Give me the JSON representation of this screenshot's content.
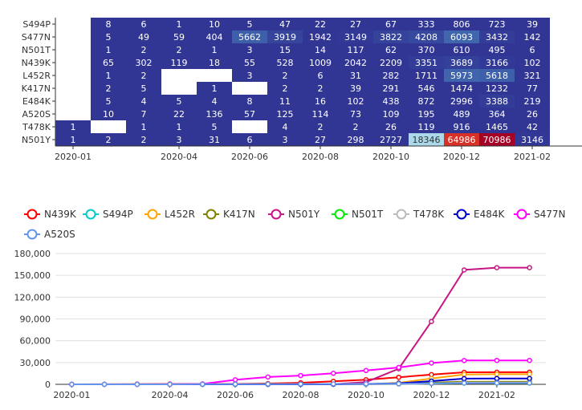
{
  "chart_data": [
    {
      "type": "heatmap",
      "title": "",
      "x_ticks": [
        "2020-01",
        "2020-04",
        "2020-06",
        "2020-08",
        "2020-10",
        "2020-12",
        "2021-02"
      ],
      "months": [
        "2020-01",
        "2020-02",
        "2020-03",
        "2020-04",
        "2020-05",
        "2020-06",
        "2020-07",
        "2020-08",
        "2020-09",
        "2020-10",
        "2020-11",
        "2020-12",
        "2021-01",
        "2021-02",
        "2021-03"
      ],
      "rows": [
        "S494P",
        "S477N",
        "N501T",
        "N439K",
        "L452R",
        "K417N",
        "E484K",
        "A520S",
        "T478K",
        "N501Y"
      ],
      "values": [
        [
          null,
          8,
          6,
          1,
          10,
          5,
          47,
          22,
          27,
          67,
          333,
          806,
          723,
          39,
          null
        ],
        [
          null,
          5,
          49,
          59,
          404,
          5662,
          3919,
          1942,
          3149,
          3822,
          4208,
          6093,
          3432,
          142,
          null
        ],
        [
          null,
          1,
          2,
          2,
          1,
          3,
          15,
          14,
          117,
          62,
          370,
          610,
          495,
          6,
          null
        ],
        [
          null,
          65,
          302,
          119,
          18,
          55,
          528,
          1009,
          2042,
          2209,
          3351,
          3689,
          3166,
          102,
          null
        ],
        [
          null,
          1,
          2,
          null,
          null,
          3,
          2,
          6,
          31,
          282,
          1711,
          5973,
          5618,
          321,
          null
        ],
        [
          null,
          2,
          5,
          null,
          1,
          null,
          2,
          2,
          39,
          291,
          546,
          1474,
          1232,
          77,
          null
        ],
        [
          null,
          5,
          4,
          5,
          4,
          8,
          11,
          16,
          102,
          438,
          872,
          2996,
          3388,
          219,
          null
        ],
        [
          null,
          10,
          7,
          22,
          136,
          57,
          125,
          114,
          73,
          109,
          195,
          489,
          364,
          26,
          null
        ],
        [
          1,
          null,
          1,
          1,
          5,
          null,
          4,
          2,
          2,
          26,
          119,
          916,
          1465,
          42,
          null
        ],
        [
          1,
          2,
          2,
          3,
          31,
          6,
          3,
          27,
          298,
          2727,
          18346,
          64986,
          70986,
          3146,
          null
        ]
      ],
      "colors": {
        "low": "#313695",
        "mid": "#4575b4",
        "light": "#abd9e9",
        "high": "#d73027",
        "peak": "#a50026"
      }
    },
    {
      "type": "line",
      "title": "",
      "x": [
        "2020-01",
        "2020-02",
        "2020-03",
        "2020-04",
        "2020-05",
        "2020-06",
        "2020-07",
        "2020-08",
        "2020-09",
        "2020-10",
        "2020-11",
        "2020-12",
        "2021-01",
        "2021-02",
        "2021-03"
      ],
      "x_ticks": [
        "2020-01",
        "2020-04",
        "2020-06",
        "2020-08",
        "2020-10",
        "2020-12",
        "2021-02"
      ],
      "y_ticks": [
        "0",
        "30,000",
        "60,000",
        "90,000",
        "120,000",
        "150,000",
        "180,000"
      ],
      "ylim": [
        0,
        180000
      ],
      "legend_position": "top-left",
      "series": [
        {
          "name": "N439K",
          "color": "#ff0000",
          "values": [
            0,
            65,
            367,
            486,
            504,
            559,
            1087,
            2096,
            4138,
            6347,
            9698,
            13387,
            16553,
            16655,
            16655
          ]
        },
        {
          "name": "S494P",
          "color": "#00cccc",
          "values": [
            0,
            8,
            14,
            15,
            25,
            30,
            77,
            99,
            126,
            193,
            526,
            1332,
            2055,
            2094,
            2094
          ]
        },
        {
          "name": "L452R",
          "color": "#ffa500",
          "values": [
            0,
            1,
            3,
            3,
            3,
            6,
            8,
            14,
            45,
            327,
            2038,
            8011,
            13629,
            13950,
            13950
          ]
        },
        {
          "name": "K417N",
          "color": "#808000",
          "values": [
            0,
            2,
            7,
            7,
            8,
            8,
            10,
            12,
            51,
            342,
            888,
            2362,
            3594,
            3671,
            3671
          ]
        },
        {
          "name": "N501Y",
          "color": "#c71585",
          "values": [
            0,
            3,
            5,
            8,
            39,
            45,
            48,
            75,
            373,
            3100,
            21446,
            86432,
            157418,
            160564,
            160564
          ]
        },
        {
          "name": "N501T",
          "color": "#00ee00",
          "values": [
            0,
            1,
            3,
            5,
            6,
            9,
            24,
            38,
            155,
            217,
            587,
            1197,
            1692,
            1698,
            1698
          ]
        },
        {
          "name": "T478K",
          "color": "#bbbbbb",
          "values": [
            0,
            1,
            2,
            3,
            8,
            8,
            12,
            14,
            16,
            42,
            161,
            1077,
            2542,
            2584,
            2584
          ]
        },
        {
          "name": "E484K",
          "color": "#0000cc",
          "values": [
            0,
            5,
            9,
            14,
            18,
            26,
            37,
            53,
            155,
            593,
            1465,
            4461,
            7849,
            8068,
            8068
          ]
        },
        {
          "name": "S477N",
          "color": "#ff00ff",
          "values": [
            0,
            5,
            54,
            113,
            517,
            6179,
            10098,
            12040,
            15189,
            19011,
            23219,
            29312,
            32744,
            32886,
            32886
          ]
        },
        {
          "name": "A520S",
          "color": "#6495ed",
          "values": [
            0,
            10,
            17,
            39,
            175,
            232,
            357,
            471,
            544,
            653,
            848,
            1337,
            1701,
            1727,
            1727
          ]
        }
      ]
    }
  ]
}
